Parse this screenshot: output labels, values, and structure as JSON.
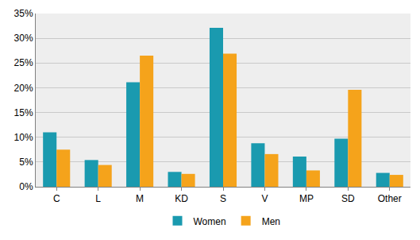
{
  "chart_data": {
    "type": "bar",
    "categories": [
      "C",
      "L",
      "M",
      "KD",
      "S",
      "V",
      "MP",
      "SD",
      "Other"
    ],
    "series": [
      {
        "name": "Women",
        "color": "#1a9aaf",
        "values": [
          11.0,
          5.4,
          21.1,
          3.0,
          32.1,
          8.8,
          6.1,
          9.7,
          2.8
        ]
      },
      {
        "name": "Men",
        "color": "#f5a31b",
        "values": [
          7.5,
          4.4,
          26.5,
          2.6,
          26.9,
          6.6,
          3.3,
          19.6,
          2.4
        ]
      }
    ],
    "ylim": [
      0,
      35
    ],
    "yticks": [
      {
        "value": 0,
        "label": "0%"
      },
      {
        "value": 5,
        "label": "5%"
      },
      {
        "value": 10,
        "label": "10%"
      },
      {
        "value": 15,
        "label": "15%"
      },
      {
        "value": 20,
        "label": "20%"
      },
      {
        "value": 25,
        "label": "25%"
      },
      {
        "value": 30,
        "label": "30%"
      },
      {
        "value": 35,
        "label": "35%"
      }
    ],
    "grid": true,
    "legend": "bottom"
  }
}
